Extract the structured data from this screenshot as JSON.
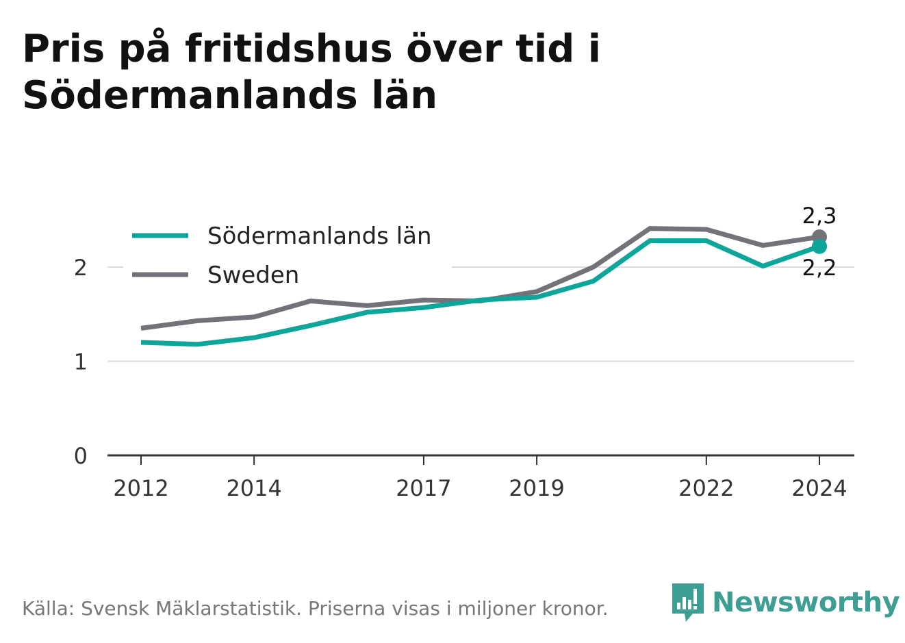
{
  "title": "Pris på fritidshus över tid i Södermanlands län",
  "source": "Källa: Svensk Mäklarstatistik. Priserna visas i miljoner kronor.",
  "brand": {
    "name": "Newsworthy",
    "icon": "newsworthy-bar-chart-icon",
    "color": "#3d9e93"
  },
  "chart_data": {
    "type": "line",
    "x": [
      2012,
      2013,
      2014,
      2015,
      2016,
      2017,
      2018,
      2019,
      2020,
      2021,
      2022,
      2023,
      2024
    ],
    "x_ticks": [
      "2012",
      "2014",
      "2017",
      "2019",
      "2022",
      "2024"
    ],
    "y_ticks": [
      "0",
      "1",
      "2"
    ],
    "ylim": [
      0,
      2.5
    ],
    "grid": "horizontal",
    "legend_position": "top-left",
    "series": [
      {
        "name": "Södermanlands län",
        "color": "#0ea69a",
        "values": [
          1.2,
          1.18,
          1.25,
          1.38,
          1.52,
          1.57,
          1.65,
          1.68,
          1.85,
          2.28,
          2.28,
          2.01,
          2.22
        ],
        "end_label": "2,2"
      },
      {
        "name": "Sweden",
        "color": "#737278",
        "values": [
          1.35,
          1.43,
          1.47,
          1.64,
          1.59,
          1.65,
          1.64,
          1.74,
          2.0,
          2.41,
          2.4,
          2.23,
          2.32
        ],
        "end_label": "2,3"
      }
    ]
  }
}
